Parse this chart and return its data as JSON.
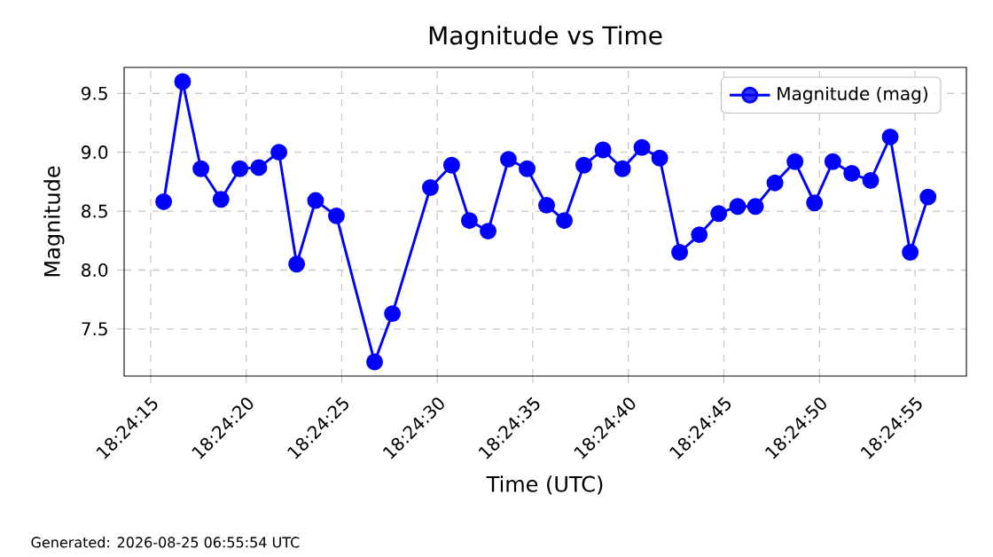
{
  "chart_data": {
    "type": "line",
    "title": "Magnitude vs Time",
    "xlabel": "Time (UTC)",
    "ylabel": "Magnitude",
    "annotations": [
      "Generated: 2026-08-25 06:55:54 UTC"
    ],
    "x": [
      18.404356,
      18.404631,
      18.404897,
      18.405189,
      18.405464,
      18.405739,
      18.406031,
      18.406289,
      18.406564,
      18.406867,
      18.407422,
      18.407681,
      18.408233,
      18.408542,
      18.4088,
      18.409072,
      18.409367,
      18.409639,
      18.409922,
      18.410181,
      18.410464,
      18.410742,
      18.411025,
      18.411308,
      18.411567,
      18.411856,
      18.412142,
      18.412425,
      18.4127,
      18.412958,
      18.413242,
      18.413533,
      18.413817,
      18.414083,
      18.414358,
      18.414633,
      18.414917,
      18.415208,
      18.415467
    ],
    "series": [
      {
        "name": "Magnitude (mag)",
        "color": "#0000ff",
        "values": [
          8.58,
          9.6,
          8.86,
          8.6,
          8.86,
          8.87,
          9.0,
          8.05,
          8.59,
          8.46,
          7.22,
          7.63,
          8.7,
          8.89,
          8.42,
          8.33,
          8.94,
          8.86,
          8.55,
          8.42,
          8.89,
          9.02,
          8.86,
          9.04,
          8.95,
          8.15,
          8.3,
          8.48,
          8.54,
          8.54,
          8.74,
          8.92,
          8.57,
          8.92,
          8.82,
          8.76,
          9.13,
          8.15,
          8.62
        ]
      }
    ],
    "xlim": [
      18.403781,
      18.416025
    ],
    "ylim": [
      7.1,
      9.72
    ],
    "xticks": [
      {
        "value": 18.404167,
        "label": "18:24:15"
      },
      {
        "value": 18.405556,
        "label": "18:24:20"
      },
      {
        "value": 18.406944,
        "label": "18:24:25"
      },
      {
        "value": 18.408333,
        "label": "18:24:30"
      },
      {
        "value": 18.409722,
        "label": "18:24:35"
      },
      {
        "value": 18.411111,
        "label": "18:24:40"
      },
      {
        "value": 18.4125,
        "label": "18:24:45"
      },
      {
        "value": 18.413889,
        "label": "18:24:50"
      },
      {
        "value": 18.415278,
        "label": "18:24:55"
      }
    ],
    "yticks": [
      7.5,
      {
        "value": 8,
        "label": "8.0"
      },
      8.5,
      {
        "value": 9,
        "label": "9.0"
      },
      9.5
    ],
    "grid": true,
    "legend": "top right",
    "marker": "circle",
    "line_style": "solid"
  }
}
